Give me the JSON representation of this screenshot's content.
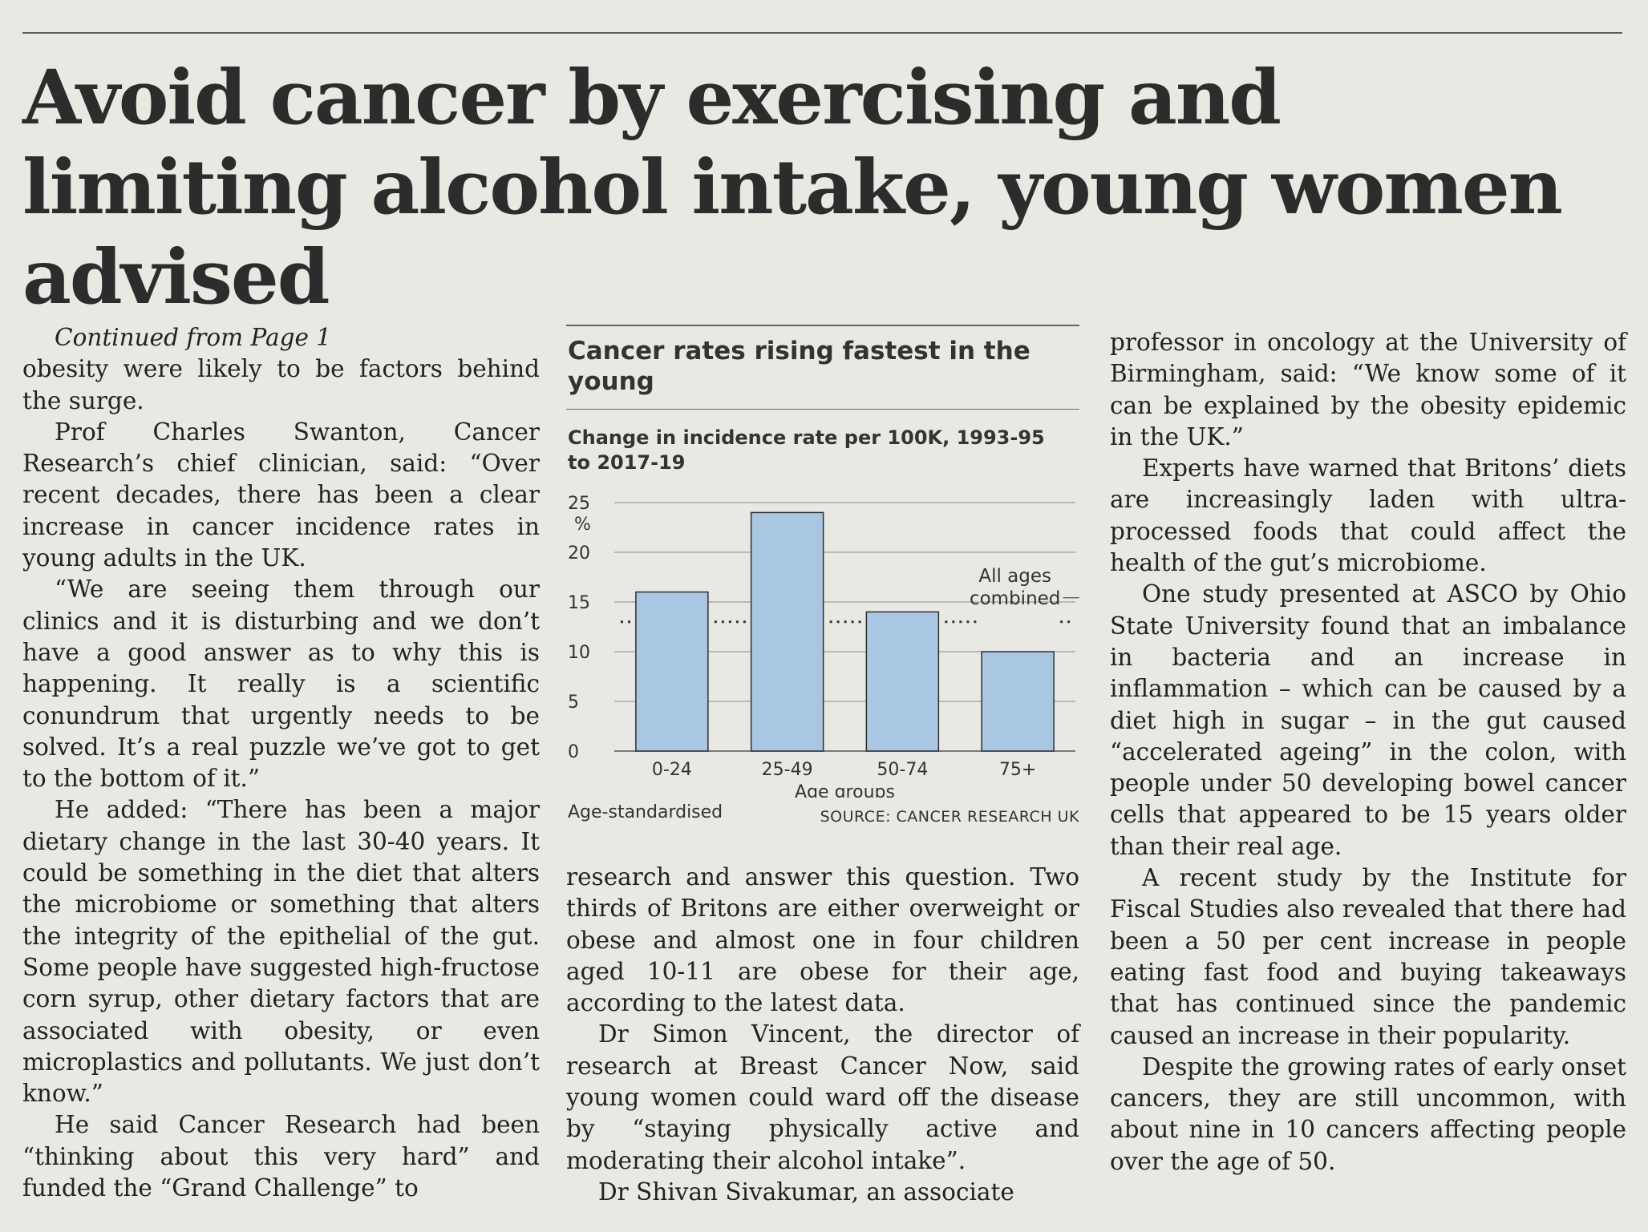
{
  "headline": "Avoid cancer by exercising and limiting alcohol intake, young women advised",
  "kicker": "Continued from Page 1",
  "left_column": [
    "obesity were likely to be factors behind the surge.",
    "Prof Charles Swanton, Cancer Research’s chief clinician, said: “Over recent decades, there has been a clear increase in cancer incidence rates in young adults in the UK.",
    "“We are seeing them through our clinics and it is disturbing and we don’t have a good answer as to why this is happening. It really is a scientific conundrum that urgently needs to be solved. It’s a real puzzle we’ve got to get to the bottom of it.”",
    "He added: “There has been a major dietary change in the last 30-40 years. It could be something in the diet that alters the microbiome or something that alters the integrity of the epithelial of the gut. Some people have suggested high-fructose corn syrup, other dietary factors that are associated with obesity, or even microplastics and pollutants. We just don’t know.”",
    "He said Cancer Research had been “thinking about this very hard” and funded the “Grand Challenge” to"
  ],
  "middle_column": [
    "research and answer this question. Two thirds of Britons are either overweight or obese and almost one in four children aged 10-11 are obese for their age, according to the latest data.",
    "Dr Simon Vincent, the director of research at Breast Cancer Now, said young women could ward off the disease by “staying physically active and moderating their alcohol intake”.",
    "Dr Shivan Sivakumar, an associate"
  ],
  "right_column": [
    "professor in oncology at the University of Birmingham, said: “We know some of it can be explained by the obesity epidemic in the UK.”",
    "Experts have warned that Britons’ diets are increasingly laden with ultra-processed foods that could affect the health of the gut’s microbiome.",
    "One study presented at ASCO by Ohio State University found that an imbalance in bacteria and an increase in inflammation – which can be caused by a diet high in sugar – in the gut caused “accelerated ageing” in the colon, with people under 50 developing bowel cancer cells that appeared to be 15 years older than their real age.",
    "A recent study by the Institute for Fiscal Studies also revealed that there had been a 50 per cent increase in people eating fast food and buying takeaways that has continued since the pandemic caused an increase in their popularity.",
    "Despite the growing rates of early onset cancers, they are still uncommon, with about nine in 10 cancers affecting people over the age of 50."
  ],
  "chart_data": {
    "type": "bar",
    "title": "Cancer rates rising fastest in the young",
    "subtitle": "Change in incidence rate per 100K, 1993-95 to 2017-19",
    "categories": [
      "0-24",
      "25-49",
      "50-74",
      "75+"
    ],
    "values": [
      16,
      24,
      14,
      10
    ],
    "xlabel": "Age groups",
    "ylabel": "",
    "y_unit": "%",
    "ylim": [
      0,
      25
    ],
    "yticks": [
      0,
      5,
      10,
      15,
      20,
      25
    ],
    "reference_line": {
      "label_line1": "All ages",
      "label_line2": "combined",
      "value": 13
    },
    "note": "Age-standardised",
    "source": "SOURCE: CANCER RESEARCH UK",
    "bar_color": "#a9c6e3",
    "grid": true
  }
}
